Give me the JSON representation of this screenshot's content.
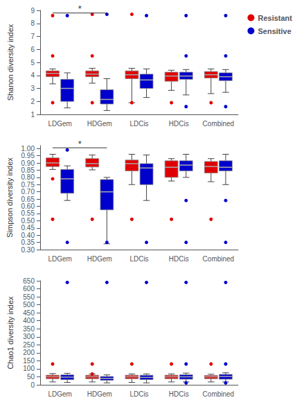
{
  "chart_data": [
    {
      "type": "box",
      "categories": [
        "LDGem",
        "HDGem",
        "LDCis",
        "HDCis",
        "Combined"
      ],
      "ylabel": "Shanon diversity index",
      "ylim": [
        1,
        9
      ],
      "yticks": [
        1,
        2,
        3,
        4,
        5,
        6,
        7,
        8,
        9
      ],
      "grid": false,
      "legend": "upper right",
      "series": [
        {
          "name": "Resistant",
          "color": "#E00000",
          "boxes": [
            {
              "q1": 3.9,
              "median": 4.15,
              "q3": 4.35,
              "whislo": 3.35,
              "whishi": 4.5
            },
            {
              "q1": 3.9,
              "median": 4.1,
              "q3": 4.35,
              "whislo": 3.4,
              "whishi": 4.55
            },
            {
              "q1": 3.75,
              "median": 4.05,
              "q3": 4.35,
              "whislo": 1.9,
              "whishi": 4.55
            },
            {
              "q1": 3.55,
              "median": 3.95,
              "q3": 4.25,
              "whislo": 2.85,
              "whishi": 4.4
            },
            {
              "q1": 3.8,
              "median": 4.05,
              "q3": 4.3,
              "whislo": 2.6,
              "whishi": 4.5
            }
          ],
          "outliers": [
            [
              "LDGem",
              1.9
            ],
            [
              "LDGem",
              8.6
            ],
            [
              "LDGem",
              5.5
            ],
            [
              "HDGem",
              1.9
            ],
            [
              "HDGem",
              8.7
            ],
            [
              "HDGem",
              5.5
            ],
            [
              "LDCis",
              1.9
            ],
            [
              "LDCis",
              8.7
            ],
            [
              "HDCis",
              1.9
            ],
            [
              "Combined",
              1.9
            ]
          ]
        },
        {
          "name": "Sensitive",
          "color": "#0000CC",
          "boxes": [
            {
              "q1": 2.0,
              "median": 3.0,
              "q3": 3.7,
              "whislo": 1.5,
              "whishi": 4.2
            },
            {
              "q1": 1.8,
              "median": 2.15,
              "q3": 2.9,
              "whislo": 1.3,
              "whishi": 3.75
            },
            {
              "q1": 3.0,
              "median": 3.65,
              "q3": 4.1,
              "whislo": 2.3,
              "whishi": 4.5
            },
            {
              "q1": 3.7,
              "median": 3.95,
              "q3": 4.25,
              "whislo": 2.5,
              "whishi": 4.45
            },
            {
              "q1": 3.6,
              "median": 3.9,
              "q3": 4.2,
              "whislo": 2.7,
              "whishi": 4.45
            }
          ],
          "outliers": [
            [
              "LDGem",
              8.6
            ],
            [
              "HDGem",
              8.7
            ],
            [
              "LDCis",
              8.6
            ],
            [
              "HDCis",
              8.6
            ],
            [
              "HDCis",
              5.5
            ],
            [
              "HDCis",
              1.6
            ],
            [
              "Combined",
              8.6
            ],
            [
              "Combined",
              5.5
            ],
            [
              "Combined",
              1.6
            ]
          ]
        }
      ],
      "annotations": [
        {
          "text": "*",
          "from": [
            "LDGem",
            "Resistant"
          ],
          "to": [
            "HDGem",
            "Sensitive"
          ],
          "y": 8.8,
          "text_y": 8.78
        }
      ]
    },
    {
      "type": "box",
      "categories": [
        "LDGem",
        "HDGem",
        "LDCis",
        "HDCis",
        "Combined"
      ],
      "ylabel": "Simpson diversity index",
      "ylim": [
        0.3,
        1.02
      ],
      "yticks": [
        {
          "value": 0.3,
          "label": "0.30"
        },
        {
          "value": 0.35,
          "label": "0.35"
        },
        {
          "value": 0.4,
          "label": "0.40"
        },
        {
          "value": 0.45,
          "label": "0.45"
        },
        {
          "value": 0.5,
          "label": "0.50"
        },
        {
          "value": 0.55,
          "label": "0.55"
        },
        {
          "value": 0.6,
          "label": "0.60"
        },
        {
          "value": 0.65,
          "label": "0.65"
        },
        {
          "value": 0.7,
          "label": "0.70"
        },
        {
          "value": 0.75,
          "label": "0.75"
        },
        {
          "value": 0.8,
          "label": "0.80"
        },
        {
          "value": 0.85,
          "label": "0.85"
        },
        {
          "value": 0.9,
          "label": "0.90"
        },
        {
          "value": 0.95,
          "label": "0.95"
        },
        {
          "value": 1.0,
          "label": "1.00"
        }
      ],
      "grid": false,
      "series": [
        {
          "name": "Resistant",
          "color": "#E00000",
          "boxes": [
            {
              "q1": 0.875,
              "median": 0.9,
              "q3": 0.935,
              "whislo": 0.855,
              "whishi": 0.96
            },
            {
              "q1": 0.872,
              "median": 0.895,
              "q3": 0.93,
              "whislo": 0.852,
              "whishi": 0.955
            },
            {
              "q1": 0.845,
              "median": 0.895,
              "q3": 0.92,
              "whislo": 0.75,
              "whishi": 0.96
            },
            {
              "q1": 0.8,
              "median": 0.87,
              "q3": 0.915,
              "whislo": 0.775,
              "whishi": 0.93
            },
            {
              "q1": 0.83,
              "median": 0.875,
              "q3": 0.91,
              "whislo": 0.77,
              "whishi": 0.93
            }
          ],
          "outliers": [
            [
              "LDGem",
              0.51
            ],
            [
              "LDGem",
              0.79
            ],
            [
              "HDGem",
              0.51
            ],
            [
              "LDCis",
              0.51
            ],
            [
              "HDCis",
              0.51
            ],
            [
              "Combined",
              0.51
            ]
          ]
        },
        {
          "name": "Sensitive",
          "color": "#0000CC",
          "boxes": [
            {
              "q1": 0.69,
              "median": 0.79,
              "q3": 0.855,
              "whislo": 0.64,
              "whishi": 0.88
            },
            {
              "q1": 0.575,
              "median": 0.7,
              "q3": 0.785,
              "whislo": 0.34,
              "whishi": 0.8
            },
            {
              "q1": 0.75,
              "median": 0.865,
              "q3": 0.895,
              "whislo": 0.64,
              "whishi": 0.955
            },
            {
              "q1": 0.845,
              "median": 0.885,
              "q3": 0.915,
              "whislo": 0.8,
              "whishi": 0.96
            },
            {
              "q1": 0.845,
              "median": 0.87,
              "q3": 0.915,
              "whislo": 0.75,
              "whishi": 0.96
            }
          ],
          "outliers": [
            [
              "LDGem",
              0.35
            ],
            [
              "LDGem",
              0.99
            ],
            [
              "HDGem",
              0.35
            ],
            [
              "LDCis",
              0.35
            ],
            [
              "HDCis",
              0.35
            ],
            [
              "HDCis",
              0.64
            ],
            [
              "Combined",
              0.35
            ],
            [
              "Combined",
              0.64
            ]
          ]
        }
      ],
      "annotations": [
        {
          "text": "*",
          "from": [
            "LDGem",
            "Resistant"
          ],
          "to": [
            "HDGem",
            "Sensitive"
          ],
          "y": 1.005,
          "text_y": 1.002
        }
      ]
    },
    {
      "type": "box",
      "categories": [
        "LDGem",
        "HDGem",
        "LDCis",
        "HDCis",
        "Combined"
      ],
      "ylabel": "Chao1 diversity index",
      "ylim": [
        0,
        650
      ],
      "yticks": [
        0,
        50,
        100,
        150,
        200,
        250,
        300,
        350,
        400,
        450,
        500,
        550,
        600,
        650
      ],
      "grid": false,
      "series": [
        {
          "name": "Resistant",
          "color": "#E00000",
          "boxes": [
            {
              "q1": 38,
              "median": 50,
              "q3": 60,
              "whislo": 18,
              "whishi": 70
            },
            {
              "q1": 38,
              "median": 50,
              "q3": 60,
              "whislo": 18,
              "whishi": 68
            },
            {
              "q1": 38,
              "median": 50,
              "q3": 60,
              "whislo": 15,
              "whishi": 68
            },
            {
              "q1": 38,
              "median": 50,
              "q3": 60,
              "whislo": 18,
              "whishi": 68
            },
            {
              "q1": 38,
              "median": 50,
              "q3": 58,
              "whislo": 18,
              "whishi": 66
            }
          ],
          "outliers": [
            [
              "LDGem",
              130
            ],
            [
              "HDGem",
              130
            ],
            [
              "HDGem",
              68
            ],
            [
              "LDCis",
              130
            ],
            [
              "HDCis",
              130
            ],
            [
              "Combined",
              130
            ]
          ]
        },
        {
          "name": "Sensitive",
          "color": "#0000CC",
          "boxes": [
            {
              "q1": 32,
              "median": 48,
              "q3": 62,
              "whislo": 15,
              "whishi": 72
            },
            {
              "q1": 28,
              "median": 40,
              "q3": 52,
              "whislo": 12,
              "whishi": 62
            },
            {
              "q1": 32,
              "median": 46,
              "q3": 60,
              "whislo": 12,
              "whishi": 68
            },
            {
              "q1": 35,
              "median": 50,
              "q3": 63,
              "whislo": 18,
              "whishi": 73
            },
            {
              "q1": 35,
              "median": 52,
              "q3": 65,
              "whislo": 18,
              "whishi": 75
            }
          ],
          "outliers": [
            [
              "LDGem",
              640
            ],
            [
              "HDGem",
              640
            ],
            [
              "LDCis",
              640
            ],
            [
              "HDCis",
              640
            ],
            [
              "HDCis",
              130
            ],
            [
              "HDCis",
              12
            ],
            [
              "Combined",
              640
            ],
            [
              "Combined",
              130
            ],
            [
              "Combined",
              12
            ]
          ]
        }
      ]
    }
  ]
}
